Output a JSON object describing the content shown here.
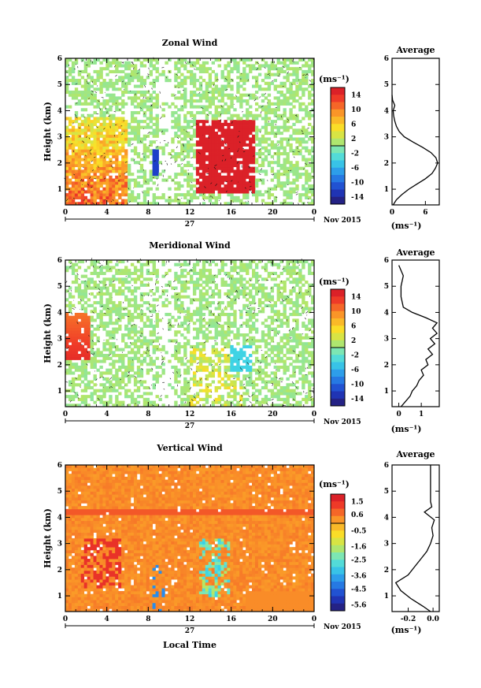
{
  "figure": {
    "xlabel": "Local Time",
    "date_label": "Nov 2015",
    "day_label": "27",
    "units": "(ms⁻¹)",
    "avg_title": "Average"
  },
  "chart_data": [
    {
      "type": "heatmap",
      "title": "Zonal Wind",
      "ylabel": "Height (km)",
      "x_ticks": [
        "0",
        "4",
        "8",
        "12",
        "16",
        "20",
        "0"
      ],
      "xlim": [
        0,
        24
      ],
      "y_ticks": [
        "1",
        "2",
        "3",
        "4",
        "5",
        "6"
      ],
      "ylim": [
        0.4,
        6.0
      ],
      "colorbar": {
        "range": [
          -16,
          16
        ],
        "tick_values": [
          14,
          10,
          6,
          2,
          -2,
          -6,
          -10,
          -14
        ],
        "tick_labels": [
          "14",
          "10",
          "6",
          "2",
          "-2",
          "-6",
          "-10",
          "-14"
        ]
      },
      "average": {
        "title": "Average",
        "xlabel": "(ms⁻¹)",
        "x_ticks": [
          "0",
          "6"
        ],
        "xlim": [
          0,
          8.5
        ],
        "profile": [
          [
            0.2,
            0.4
          ],
          [
            0.8,
            0.6
          ],
          [
            1.8,
            0.8
          ],
          [
            3.0,
            1.0
          ],
          [
            4.5,
            1.2
          ],
          [
            6.0,
            1.4
          ],
          [
            7.2,
            1.6
          ],
          [
            7.8,
            1.8
          ],
          [
            8.2,
            2.0
          ],
          [
            7.9,
            2.2
          ],
          [
            7.0,
            2.4
          ],
          [
            5.5,
            2.6
          ],
          [
            3.8,
            2.8
          ],
          [
            2.2,
            3.0
          ],
          [
            1.3,
            3.2
          ],
          [
            0.8,
            3.4
          ],
          [
            0.5,
            3.6
          ],
          [
            0.3,
            3.8
          ],
          [
            0.2,
            4.0
          ],
          [
            0.5,
            4.2
          ],
          [
            0.1,
            4.4
          ],
          [
            0.0,
            4.6
          ]
        ]
      },
      "field_kind": "zonal"
    },
    {
      "type": "heatmap",
      "title": "Meridional Wind",
      "ylabel": "Height (km)",
      "x_ticks": [
        "0",
        "4",
        "8",
        "12",
        "16",
        "20",
        "0"
      ],
      "xlim": [
        0,
        24
      ],
      "y_ticks": [
        "1",
        "2",
        "3",
        "4",
        "5",
        "6"
      ],
      "ylim": [
        0.4,
        6.0
      ],
      "colorbar": {
        "range": [
          -16,
          16
        ],
        "tick_values": [
          14,
          10,
          6,
          2,
          -2,
          -6,
          -10,
          -14
        ],
        "tick_labels": [
          "14",
          "10",
          "6",
          "2",
          "-2",
          "-6",
          "-10",
          "-14"
        ]
      },
      "average": {
        "title": "Average",
        "xlabel": "(ms⁻¹)",
        "x_ticks": [
          "0",
          "1"
        ],
        "xlim": [
          -0.3,
          1.8
        ],
        "profile": [
          [
            0.1,
            0.4
          ],
          [
            0.3,
            0.6
          ],
          [
            0.5,
            0.8
          ],
          [
            0.6,
            1.0
          ],
          [
            0.8,
            1.2
          ],
          [
            0.9,
            1.4
          ],
          [
            1.1,
            1.6
          ],
          [
            1.0,
            1.8
          ],
          [
            1.3,
            2.0
          ],
          [
            1.2,
            2.2
          ],
          [
            1.5,
            2.4
          ],
          [
            1.3,
            2.6
          ],
          [
            1.6,
            2.8
          ],
          [
            1.4,
            3.0
          ],
          [
            1.7,
            3.2
          ],
          [
            1.5,
            3.4
          ],
          [
            1.7,
            3.6
          ],
          [
            1.2,
            3.8
          ],
          [
            0.6,
            4.0
          ],
          [
            0.2,
            4.2
          ],
          [
            0.1,
            4.6
          ],
          [
            0.1,
            5.0
          ],
          [
            0.2,
            5.4
          ],
          [
            0.0,
            5.8
          ]
        ]
      },
      "field_kind": "meridional"
    },
    {
      "type": "heatmap",
      "title": "Vertical Wind",
      "ylabel": "Height (km)",
      "x_ticks": [
        "0",
        "4",
        "8",
        "12",
        "16",
        "20",
        "0"
      ],
      "xlim": [
        0,
        24
      ],
      "y_ticks": [
        "1",
        "2",
        "3",
        "4",
        "5",
        "6"
      ],
      "ylim": [
        0.4,
        6.0
      ],
      "colorbar": {
        "range": [
          -6.0,
          2.0
        ],
        "tick_values": [
          1.5,
          0.6,
          -0.5,
          -1.6,
          -2.5,
          -3.6,
          -4.5,
          -5.6
        ],
        "tick_labels": [
          "1.5",
          "0.6",
          "-0.5",
          "-1.6",
          "-2.5",
          "-3.6",
          "-4.5",
          "-5.6"
        ]
      },
      "average": {
        "title": "Average",
        "xlabel": "(ms⁻¹)",
        "x_ticks": [
          "-0.2",
          "0.0"
        ],
        "xlim": [
          -0.33,
          0.05
        ],
        "profile": [
          [
            -0.02,
            0.4
          ],
          [
            -0.08,
            0.6
          ],
          [
            -0.18,
            0.9
          ],
          [
            -0.26,
            1.2
          ],
          [
            -0.3,
            1.5
          ],
          [
            -0.2,
            1.8
          ],
          [
            -0.15,
            2.1
          ],
          [
            -0.1,
            2.4
          ],
          [
            -0.05,
            2.7
          ],
          [
            -0.02,
            3.0
          ],
          [
            0.0,
            3.3
          ],
          [
            -0.01,
            3.6
          ],
          [
            0.01,
            3.9
          ],
          [
            -0.07,
            4.2
          ],
          [
            -0.01,
            4.4
          ],
          [
            -0.02,
            4.6
          ],
          [
            -0.02,
            5.0
          ],
          [
            -0.02,
            5.5
          ],
          [
            -0.02,
            6.0
          ]
        ]
      },
      "field_kind": "vertical"
    }
  ]
}
